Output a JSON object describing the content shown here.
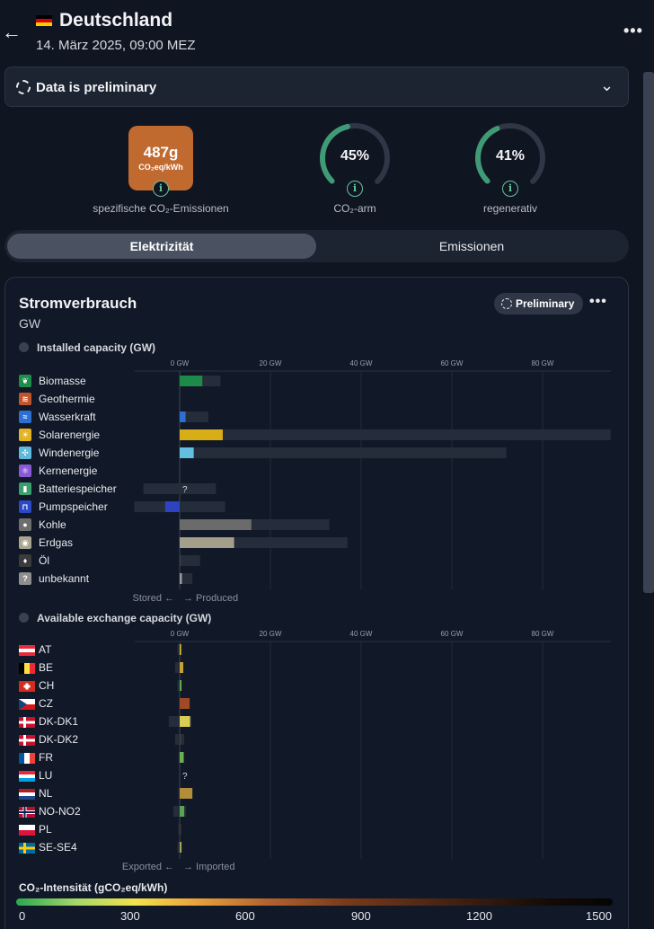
{
  "header": {
    "title": "Deutschland",
    "subtitle": "14. März 2025, 09:00 MEZ",
    "flag_colors": [
      "#000000",
      "#dd0000",
      "#ffce00"
    ]
  },
  "preliminary_banner": {
    "text": "Data is preliminary"
  },
  "metrics": {
    "co2_value": "487g",
    "co2_unit": "CO₂eq/kWh",
    "co2_label": "spezifische CO₂-Emissionen",
    "co2_color": "#c16a30",
    "low_carbon_pct": "45%",
    "low_carbon_fraction": 0.45,
    "low_carbon_label": "CO₂-arm",
    "renewable_pct": "41%",
    "renewable_fraction": 0.41,
    "renewable_label": "regenerativ"
  },
  "tabs": [
    {
      "label": "Elektrizität",
      "active": true
    },
    {
      "label": "Emissionen",
      "active": false
    }
  ],
  "card": {
    "title": "Stromverbrauch",
    "unit": "GW",
    "badge": "Preliminary"
  },
  "sections": {
    "production_title": "Installed capacity (GW)",
    "production_footer_left": "Stored ←",
    "production_footer_right": "→ Produced",
    "exchange_title": "Available exchange capacity (GW)",
    "exchange_footer_left": "Exported ←",
    "exchange_footer_right": "→ Imported",
    "axis_ticks": [
      "0 GW",
      "20 GW",
      "40 GW",
      "60 GW",
      "80 GW"
    ]
  },
  "chart_data": [
    {
      "type": "bar",
      "orientation": "horizontal",
      "x_unit": "GW",
      "x_ticks": [
        0,
        20,
        40,
        60,
        80
      ],
      "categories": [
        "Biomasse",
        "Geothermie",
        "Wasserkraft",
        "Solarenergie",
        "Windenergie",
        "Kernenergie",
        "Batteriespeicher",
        "Pumpspeicher",
        "Kohle",
        "Erdgas",
        "Öl",
        "unbekannt"
      ],
      "icons": [
        {
          "name": "leaf-icon",
          "color": "#1f8c4c",
          "glyph": "❦"
        },
        {
          "name": "geothermal-icon",
          "color": "#c0552b",
          "glyph": "≋"
        },
        {
          "name": "water-icon",
          "color": "#2a6fd1",
          "glyph": "≈"
        },
        {
          "name": "sun-icon",
          "color": "#e5b320",
          "glyph": "☀"
        },
        {
          "name": "wind-icon",
          "color": "#5fb8de",
          "glyph": "✣"
        },
        {
          "name": "atom-icon",
          "color": "#8a5ad6",
          "glyph": "⚛"
        },
        {
          "name": "battery-icon",
          "color": "#3a9e6e",
          "glyph": "▮"
        },
        {
          "name": "pumped-storage-icon",
          "color": "#2b48c6",
          "glyph": "⊓"
        },
        {
          "name": "coal-icon",
          "color": "#6e6e6e",
          "glyph": "●"
        },
        {
          "name": "gas-icon",
          "color": "#a9a48f",
          "glyph": "◉"
        },
        {
          "name": "oil-icon",
          "color": "#3b3b3b",
          "glyph": "♦"
        },
        {
          "name": "unknown-icon",
          "color": "#8e8e8e",
          "glyph": "?"
        }
      ],
      "capacity": [
        [
          0,
          9
        ],
        [
          0,
          0
        ],
        [
          0,
          6.3
        ],
        [
          0,
          95
        ],
        [
          0,
          72
        ],
        [
          0,
          0
        ],
        [
          -8,
          8
        ],
        [
          -10,
          10
        ],
        [
          0,
          33
        ],
        [
          0,
          37
        ],
        [
          0,
          4.5
        ],
        [
          0,
          2.8
        ]
      ],
      "actual": [
        5,
        0,
        1.3,
        9.5,
        3.1,
        0,
        0,
        -3.2,
        15.8,
        12,
        0.3,
        0.5
      ],
      "colors": [
        "#1d8a4a",
        "#b24b25",
        "#2f6fd1",
        "#d7ad18",
        "#62bfe0",
        "#7c53c9",
        "#3a9e6e",
        "#2d43c2",
        "#6b6b6b",
        "#a39f8a",
        "#3b3b3b",
        "#9a9a9a"
      ],
      "unknown_value_label": {
        "index": 6,
        "text": "?"
      }
    },
    {
      "type": "bar",
      "orientation": "horizontal",
      "x_unit": "GW",
      "x_ticks": [
        0,
        20,
        40,
        60,
        80
      ],
      "categories": [
        "AT",
        "BE",
        "CH",
        "CZ",
        "DK-DK1",
        "DK-DK2",
        "FR",
        "LU",
        "NL",
        "NO-NO2",
        "PL",
        "SE-SE4"
      ],
      "capacity": [
        [
          -0.5,
          0.5
        ],
        [
          -1,
          0.8
        ],
        [
          -0.5,
          0.5
        ],
        [
          -0.2,
          2.2
        ],
        [
          -2.4,
          2.6
        ],
        [
          -1,
          1
        ],
        [
          -0.3,
          0.9
        ],
        [
          0,
          0
        ],
        [
          -0.3,
          2.8
        ],
        [
          -1.4,
          1.4
        ],
        [
          -0.3,
          0.3
        ],
        [
          -0.5,
          0.5
        ]
      ],
      "actual": [
        0.3,
        0.8,
        0.4,
        2.2,
        2.3,
        0.2,
        0.9,
        0,
        2.8,
        1,
        0.1,
        0.4
      ],
      "colors": [
        "#e4c233",
        "#c8a038",
        "#62a84e",
        "#a04a25",
        "#d9cd55",
        "#3d3d3d",
        "#6cae50",
        "#6cae50",
        "#b38d3a",
        "#5aa450",
        "#3b3b3b",
        "#a8a45a"
      ],
      "unknown_value_label": {
        "index": 7,
        "text": "?"
      }
    }
  ],
  "legend": {
    "title": "CO₂-Intensität (gCO₂eq/kWh)",
    "ticks": [
      "0",
      "300",
      "600",
      "900",
      "1200",
      "1500"
    ]
  }
}
